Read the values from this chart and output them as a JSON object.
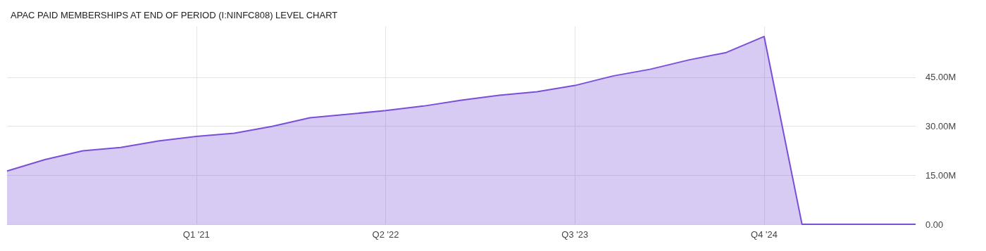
{
  "chart_data": {
    "type": "area",
    "title": "APAC PAID MEMBERSHIPS AT END OF PERIOD (I:NINFC808) LEVEL CHART",
    "categories": [
      null,
      null,
      null,
      null,
      null,
      "Q1 '21",
      null,
      null,
      null,
      null,
      "Q2 '22",
      null,
      null,
      null,
      null,
      "Q3 '23",
      null,
      null,
      null,
      null,
      "Q4 '24",
      null,
      null,
      null,
      null
    ],
    "series": [
      {
        "color": "#7a4fd8",
        "values": [
          16300000,
          19800000,
          22500000,
          23500000,
          25500000,
          26900000,
          27900000,
          30000000,
          32600000,
          33700000,
          34800000,
          36200000,
          38000000,
          39500000,
          40600000,
          42500000,
          45400000,
          47500000,
          50300000,
          52600000,
          57500000,
          0,
          0,
          0,
          0
        ]
      }
    ],
    "ylim": [
      0,
      60500000
    ],
    "yticks": [
      {
        "value": 0,
        "label": "0.00"
      },
      {
        "value": 15000000,
        "label": "15.00M"
      },
      {
        "value": 30000000,
        "label": "30.00M"
      },
      {
        "value": 45000000,
        "label": "45.00M"
      }
    ],
    "grid": true
  }
}
